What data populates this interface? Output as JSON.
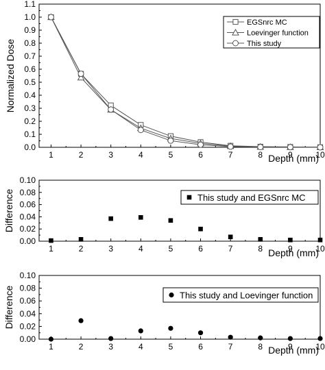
{
  "chart_data": [
    {
      "type": "line",
      "x": [
        1,
        2,
        3,
        4,
        5,
        6,
        7,
        8,
        9,
        10
      ],
      "xlim": [
        0.6,
        10
      ],
      "ylim": [
        0.0,
        1.1
      ],
      "xticks": [
        "1",
        "2",
        "3",
        "4",
        "5",
        "6",
        "7",
        "8",
        "9",
        "10"
      ],
      "yticks": [
        "0.0",
        "0.1",
        "0.2",
        "0.3",
        "0.4",
        "0.5",
        "0.6",
        "0.7",
        "0.8",
        "0.9",
        "1.0",
        "1.1"
      ],
      "xlabel": "Depth (mm)",
      "ylabel": "Normalized Dose",
      "legend_position": "top-right",
      "series": [
        {
          "name": "EGSnrc MC",
          "marker": "square",
          "values": [
            1.0,
            0.565,
            0.322,
            0.172,
            0.086,
            0.04,
            0.012,
            0.005,
            0.003,
            0.001
          ]
        },
        {
          "name": "Loevinger function",
          "marker": "triangle",
          "values": [
            1.0,
            0.536,
            0.289,
            0.147,
            0.068,
            0.03,
            0.009,
            0.004,
            0.002,
            0.001
          ]
        },
        {
          "name": "This study",
          "marker": "circle",
          "values": [
            1.0,
            0.565,
            0.29,
            0.133,
            0.051,
            0.02,
            0.005,
            0.002,
            0.001,
            0.0
          ]
        }
      ]
    },
    {
      "type": "scatter",
      "x": [
        1,
        2,
        3,
        4,
        5,
        6,
        7,
        8,
        9,
        10
      ],
      "xlim": [
        0.6,
        10
      ],
      "ylim": [
        0.0,
        0.1
      ],
      "xticks": [
        "1",
        "2",
        "3",
        "4",
        "5",
        "6",
        "7",
        "8",
        "9",
        "10"
      ],
      "yticks": [
        "0.00",
        "0.02",
        "0.04",
        "0.06",
        "0.08",
        "0.10"
      ],
      "xlabel": "Depth (mm)",
      "ylabel": "Difference",
      "legend_position": "top-right",
      "series": [
        {
          "name": "This study and EGSnrc MC",
          "marker": "filled-square",
          "values": [
            0.001,
            0.003,
            0.037,
            0.039,
            0.034,
            0.02,
            0.007,
            0.003,
            0.002,
            0.002
          ]
        }
      ]
    },
    {
      "type": "scatter",
      "x": [
        1,
        2,
        3,
        4,
        5,
        6,
        7,
        8,
        9,
        10
      ],
      "xlim": [
        0.6,
        10
      ],
      "ylim": [
        0.0,
        0.1
      ],
      "xticks": [
        "1",
        "2",
        "3",
        "4",
        "5",
        "6",
        "7",
        "8",
        "9",
        "10"
      ],
      "yticks": [
        "0.00",
        "0.02",
        "0.04",
        "0.06",
        "0.08",
        "0.10"
      ],
      "xlabel": "Depth (mm)",
      "ylabel": "Difference",
      "legend_position": "top-right",
      "series": [
        {
          "name": "This study and Loevinger function",
          "marker": "filled-circle",
          "values": [
            0.0,
            0.029,
            0.001,
            0.013,
            0.017,
            0.01,
            0.003,
            0.002,
            0.001,
            0.001
          ]
        }
      ]
    }
  ]
}
